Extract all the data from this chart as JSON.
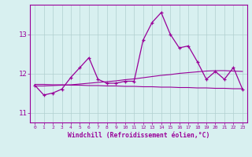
{
  "x": [
    0,
    1,
    2,
    3,
    4,
    5,
    6,
    7,
    8,
    9,
    10,
    11,
    12,
    13,
    14,
    15,
    16,
    17,
    18,
    19,
    20,
    21,
    22,
    23
  ],
  "line1": [
    11.7,
    11.45,
    11.5,
    11.6,
    11.9,
    12.15,
    12.4,
    11.85,
    11.75,
    11.75,
    11.8,
    11.8,
    12.85,
    13.3,
    13.55,
    13.0,
    12.65,
    12.7,
    12.3,
    11.85,
    12.05,
    11.85,
    12.15,
    11.6
  ],
  "line2": [
    11.68,
    11.68,
    11.69,
    11.7,
    11.71,
    11.73,
    11.75,
    11.77,
    11.79,
    11.81,
    11.84,
    11.86,
    11.89,
    11.92,
    11.95,
    11.97,
    12.0,
    12.02,
    12.04,
    12.06,
    12.07,
    12.07,
    12.06,
    12.05
  ],
  "line3": [
    11.72,
    11.72,
    11.71,
    11.71,
    11.7,
    11.7,
    11.69,
    11.69,
    11.68,
    11.68,
    11.67,
    11.67,
    11.66,
    11.66,
    11.65,
    11.65,
    11.64,
    11.64,
    11.63,
    11.63,
    11.62,
    11.62,
    11.61,
    11.61
  ],
  "line_color": "#990099",
  "bg_color": "#d8f0f0",
  "grid_color": "#b0d0d0",
  "xlabel": "Windchill (Refroidissement éolien,°C)",
  "ylim": [
    10.75,
    13.75
  ],
  "xlim": [
    -0.5,
    23.5
  ],
  "yticks": [
    11,
    12,
    13
  ],
  "xticks": [
    0,
    1,
    2,
    3,
    4,
    5,
    6,
    7,
    8,
    9,
    10,
    11,
    12,
    13,
    14,
    15,
    16,
    17,
    18,
    19,
    20,
    21,
    22,
    23
  ]
}
